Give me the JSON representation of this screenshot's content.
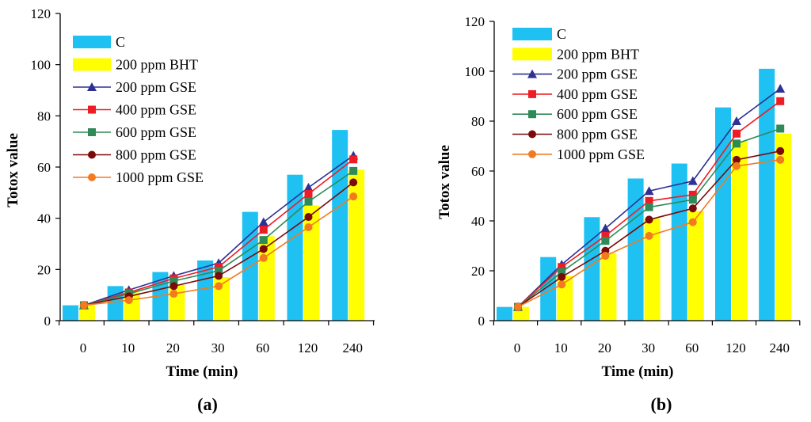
{
  "chart_data": [
    {
      "type": "bar+line",
      "panel_label": "(a)",
      "categories": [
        "0",
        "10",
        "20",
        "30",
        "60",
        "120",
        "240"
      ],
      "bar_series": [
        {
          "name": "C",
          "color": "#1ec1f2",
          "values": [
            6,
            13.5,
            19,
            23.5,
            42.5,
            57,
            74.5
          ]
        },
        {
          "name": "200 ppm BHT",
          "color": "#ffff00",
          "values": [
            6,
            11,
            14,
            17,
            33,
            45,
            59
          ]
        }
      ],
      "line_series": [
        {
          "name": "200 ppm GSE",
          "color": "#2e3192",
          "marker": "triangle",
          "values": [
            6,
            12,
            17.5,
            22.5,
            38.5,
            52,
            64.5
          ]
        },
        {
          "name": "400 ppm GSE",
          "color": "#ee1c25",
          "marker": "square",
          "values": [
            6,
            11,
            16.5,
            21,
            35.5,
            49.5,
            63
          ]
        },
        {
          "name": "600 ppm GSE",
          "color": "#2e8b57",
          "marker": "square",
          "values": [
            6,
            10.5,
            15.5,
            19.5,
            31.5,
            46.5,
            58.5
          ]
        },
        {
          "name": "800 ppm GSE",
          "color": "#7b0a0a",
          "marker": "circle",
          "values": [
            6,
            9.5,
            13.5,
            17.5,
            28,
            40.5,
            54
          ]
        },
        {
          "name": "1000 ppm GSE",
          "color": "#f47a20",
          "marker": "circle",
          "values": [
            6,
            8,
            10.5,
            13.5,
            24.5,
            36.5,
            48.5
          ]
        }
      ],
      "xlabel": "Time (min)",
      "ylabel": "Totox value",
      "ylim": [
        0,
        120
      ],
      "yticks": [
        "0",
        "20",
        "40",
        "60",
        "80",
        "100",
        "120"
      ],
      "legend_position": "top-left"
    },
    {
      "type": "bar+line",
      "panel_label": "(b)",
      "categories": [
        "0",
        "10",
        "20",
        "30",
        "60",
        "120",
        "240"
      ],
      "bar_series": [
        {
          "name": "C",
          "color": "#1ec1f2",
          "values": [
            5.5,
            25.5,
            41.5,
            57,
            63,
            85.5,
            101
          ]
        },
        {
          "name": "200 ppm BHT",
          "color": "#ffff00",
          "values": [
            5.5,
            18,
            27,
            41,
            44,
            72,
            75
          ]
        }
      ],
      "line_series": [
        {
          "name": "200 ppm GSE",
          "color": "#2e3192",
          "marker": "triangle",
          "values": [
            5.5,
            22.5,
            37,
            52,
            56,
            80,
            93
          ]
        },
        {
          "name": "400 ppm GSE",
          "color": "#ee1c25",
          "marker": "square",
          "values": [
            5.5,
            21.5,
            34,
            48,
            50.5,
            75,
            88
          ]
        },
        {
          "name": "600 ppm GSE",
          "color": "#2e8b57",
          "marker": "square",
          "values": [
            5.5,
            19.5,
            32,
            45.5,
            48.5,
            71,
            77
          ]
        },
        {
          "name": "800 ppm GSE",
          "color": "#7b0a0a",
          "marker": "circle",
          "values": [
            5.5,
            17.5,
            28,
            40.5,
            45,
            64.5,
            68
          ]
        },
        {
          "name": "1000 ppm GSE",
          "color": "#f47a20",
          "marker": "circle",
          "values": [
            5.5,
            14.5,
            26,
            34,
            39.5,
            62,
            64.5
          ]
        }
      ],
      "xlabel": "Time (min)",
      "ylabel": "Totox value",
      "ylim": [
        0,
        120
      ],
      "yticks": [
        "0",
        "20",
        "40",
        "60",
        "80",
        "100",
        "120"
      ],
      "legend_position": "top-left"
    }
  ]
}
